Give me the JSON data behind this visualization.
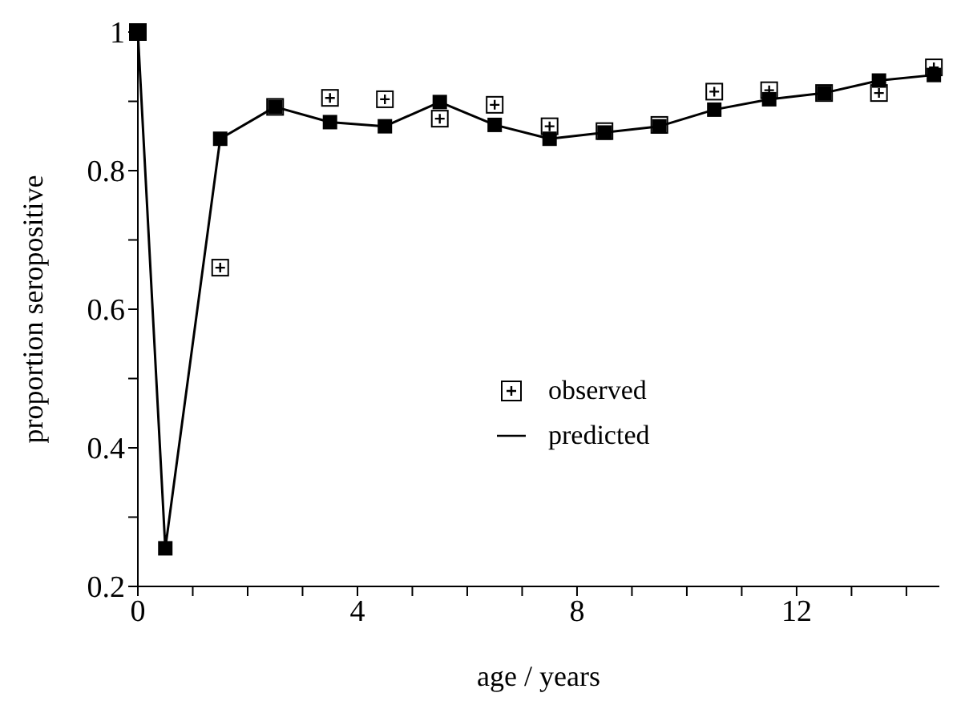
{
  "chart_data": {
    "type": "line",
    "xlabel": "age / years",
    "ylabel": "proportion seropositive",
    "xlim": [
      0,
      14.6
    ],
    "ylim": [
      0.2,
      1
    ],
    "xticks": [
      0,
      {
        "value": 1,
        "label": null
      },
      {
        "value": 2,
        "label": null
      },
      {
        "value": 3,
        "label": null
      },
      4,
      {
        "value": 5,
        "label": null
      },
      {
        "value": 6,
        "label": null
      },
      {
        "value": 7,
        "label": null
      },
      8,
      {
        "value": 9,
        "label": null
      },
      {
        "value": 10,
        "label": null
      },
      {
        "value": 11,
        "label": null
      },
      12,
      {
        "value": 13,
        "label": null
      },
      {
        "value": 14,
        "label": null
      }
    ],
    "yticks": [
      0.2,
      {
        "value": 0.3,
        "label": null
      },
      0.4,
      {
        "value": 0.5,
        "label": null
      },
      0.6,
      {
        "value": 0.7,
        "label": null
      },
      0.8,
      {
        "value": 0.9,
        "label": null
      },
      1
    ],
    "x": [
      0,
      0.5,
      1.5,
      2.5,
      3.5,
      4.5,
      5.5,
      6.5,
      7.5,
      8.5,
      9.5,
      10.5,
      11.5,
      12.5,
      13.5,
      14.5
    ],
    "series": [
      {
        "name": "observed",
        "type": "scatter",
        "color": "#000000",
        "values": [
          1.0,
          null,
          0.66,
          0.892,
          0.905,
          0.903,
          0.875,
          0.895,
          0.864,
          0.857,
          0.866,
          0.914,
          0.916,
          0.912,
          0.912,
          0.949
        ]
      },
      {
        "name": "predicted",
        "color": "#000000",
        "values": [
          1.0,
          0.255,
          0.846,
          0.892,
          0.87,
          0.864,
          0.899,
          0.866,
          0.846,
          0.855,
          0.864,
          0.888,
          0.903,
          0.912,
          0.93,
          0.938
        ]
      }
    ],
    "marker": "square",
    "line_style": "solid",
    "grid": false,
    "legend": "right"
  }
}
